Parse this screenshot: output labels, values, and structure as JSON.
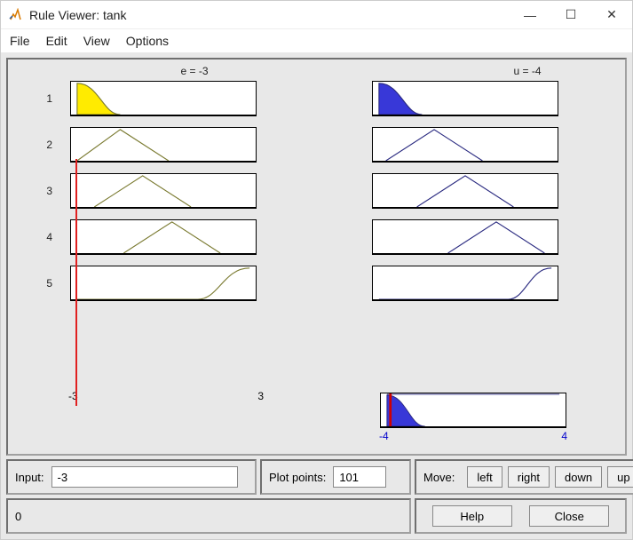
{
  "window": {
    "title": "Rule Viewer: tank",
    "minimize_glyph": "—",
    "maximize_glyph": "☐",
    "close_glyph": "✕"
  },
  "menu": {
    "file": "File",
    "edit": "Edit",
    "view": "View",
    "options": "Options"
  },
  "columns": {
    "input_label": "e = -3",
    "output_label": "u = -4"
  },
  "rules": {
    "numbers": [
      "1",
      "2",
      "3",
      "4",
      "5"
    ]
  },
  "input_axis": {
    "min": "-3",
    "max": "3"
  },
  "output_axis": {
    "min": "-4",
    "max": "4",
    "color": "#0000cc"
  },
  "colors": {
    "mf_fill_input": "#ffeb00",
    "mf_stroke_input": "#7a7a30",
    "mf_fill_output": "#3838d8",
    "mf_stroke_output": "#2a2a80",
    "crisp_line": "#d00000",
    "box_bg": "#ffffff"
  },
  "mf_shapes_input": [
    {
      "type": "zmf_fill",
      "b": 0.25
    },
    {
      "type": "tri",
      "p": 0.25
    },
    {
      "type": "tri",
      "p": 0.38
    },
    {
      "type": "tri",
      "p": 0.55
    },
    {
      "type": "smf",
      "a": 0.7
    }
  ],
  "mf_shapes_output": [
    {
      "type": "zmf_fill",
      "b": 0.25
    },
    {
      "type": "tri",
      "p": 0.32
    },
    {
      "type": "tri",
      "p": 0.5
    },
    {
      "type": "tri",
      "p": 0.68
    },
    {
      "type": "smf",
      "a": 0.75
    }
  ],
  "output_summary": {
    "type": "zmf_fill",
    "b": 0.22,
    "crisp_x": 0.02
  },
  "controls": {
    "input_label": "Input:",
    "input_value": "-3",
    "plotpts_label": "Plot points:",
    "plotpts_value": "101",
    "move_label": "Move:",
    "left": "left",
    "right": "right",
    "down": "down",
    "up": "up",
    "status": "0",
    "help": "Help",
    "close": "Close"
  }
}
